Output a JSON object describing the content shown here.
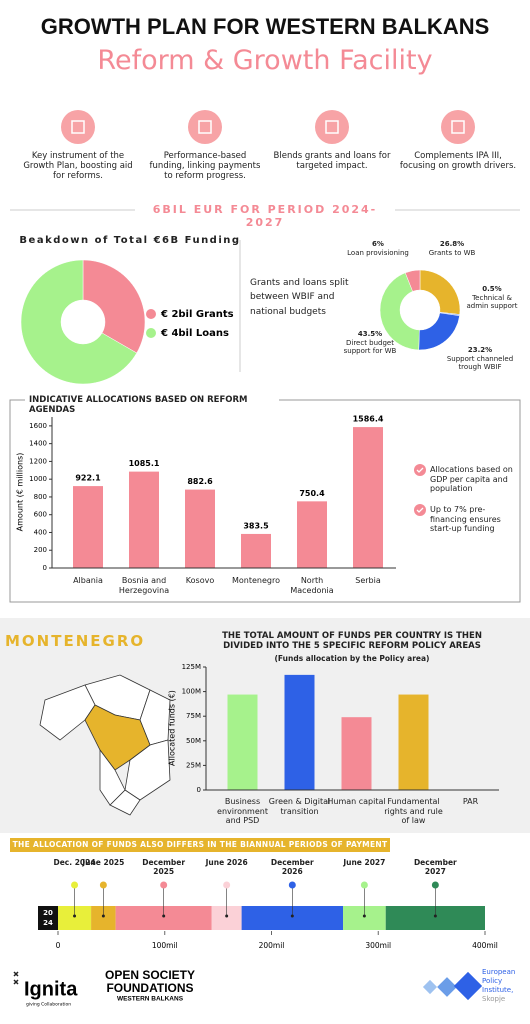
{
  "header": {
    "title": "GROWTH PLAN FOR WESTERN BALKANS",
    "subtitle": "Reform & Growth Facility"
  },
  "features": [
    "Key instrument of the Growth Plan, boosting aid for reforms.",
    "Performance-based funding, linking payments to reform progress.",
    "Blends grants and loans for targeted impact.",
    "Complements IPA III, focusing on growth drivers."
  ],
  "banner": "6BIL EUR FOR PERIOD 2024-2027",
  "chart_data": [
    {
      "type": "pie",
      "title": "Beakdown of Total €6B Funding",
      "categories": [
        "€ 2bil Grants",
        "€ 4bil Loans"
      ],
      "values": [
        2,
        4
      ],
      "colors": [
        "#f48a95",
        "#a6f28c"
      ]
    },
    {
      "type": "pie",
      "annotation": "Grants and loans split between WBIF and national budgets",
      "categories": [
        "Grants to WB",
        "Technical & admin support",
        "Support channeled trough WBIF",
        "Direct budget support for WB",
        "Loan provisioning"
      ],
      "values": [
        26.8,
        0.5,
        23.2,
        43.5,
        6
      ],
      "value_labels": [
        "26.8%",
        "0.5%",
        "23.2%",
        "43.5%",
        "6%"
      ],
      "colors": [
        "#e6b42c",
        "#7aa0f0",
        "#2e61e6",
        "#a6f28c",
        "#f48a95"
      ]
    },
    {
      "type": "bar",
      "title": "INDICATIVE ALLOCATIONS BASED ON REFORM AGENDAS",
      "y_label": "Amount (€ millions)",
      "categories": [
        "Albania",
        "Bosnia and Herzegovina",
        "Kosovo",
        "Montenegro",
        "North Macedonia",
        "Serbia"
      ],
      "values": [
        922.1,
        1085.1,
        882.6,
        383.5,
        750.4,
        1586.4
      ],
      "color": "#f48a95",
      "ylim": [
        0,
        1700
      ],
      "yticks": [
        0,
        200,
        400,
        600,
        800,
        1000,
        1200,
        1400,
        1600
      ],
      "notes": [
        "Allocations based on GDP per capita and population",
        "Up to 7% pre-financing ensures start-up funding"
      ]
    },
    {
      "type": "bar",
      "section": "MONTENEGRO",
      "title": "THE TOTAL AMOUNT OF FUNDS PER COUNTRY IS THEN DIVIDED INTO THE 5 SPECIFIC REFORM POLICY AREAS",
      "subtitle": "(Funds allocation by the Policy area)",
      "y_label": "Allocated funds (€)",
      "categories": [
        "Business environment and PSD",
        "Green & Digital transition",
        "Human capital",
        "Fundamental rights and rule of law",
        "PAR"
      ],
      "values": [
        97000000,
        117000000,
        74000000,
        97000000,
        0
      ],
      "colors": [
        "#a6f28c",
        "#2e61e6",
        "#f48a95",
        "#e6b42c",
        "#f48a95"
      ],
      "ylim": [
        0,
        125000000
      ],
      "yticks": [
        0,
        {
          "value": 25000000,
          "label": "25M"
        },
        {
          "value": 50000000,
          "label": "50M"
        },
        {
          "value": 75000000,
          "label": "75M"
        },
        {
          "value": 100000000,
          "label": "100M"
        },
        {
          "value": 125000000,
          "label": "125M"
        }
      ]
    },
    {
      "type": "timeline",
      "title": "THE ALLOCATION OF FUNDS ALSO DIFFERS IN THE BIANNUAL PERIODS OF PAYMENT",
      "badge": [
        "20",
        "24"
      ],
      "categories": [
        "Dec. 2024",
        "June 2025",
        "December 2025",
        "June 2026",
        "December 2026",
        "June 2027",
        "December 2027"
      ],
      "values": [
        31,
        23,
        90,
        28,
        95,
        40,
        93
      ],
      "colors": [
        "#e8ef3a",
        "#e6b42c",
        "#f48a95",
        "#fbd1d7",
        "#2e61e6",
        "#a6f28c",
        "#2f8a57"
      ],
      "xlim": [
        0,
        400
      ],
      "xticks": [
        0,
        {
          "value": 100,
          "label": "100mil"
        },
        {
          "value": 200,
          "label": "200mil"
        },
        {
          "value": 300,
          "label": "300mil"
        },
        {
          "value": 400,
          "label": "400mil"
        }
      ]
    }
  ],
  "footer": {
    "logo1": "Ignita",
    "tagline": "giving Collaboration",
    "logo2": [
      "OPEN SOCIETY",
      "FOUNDATIONS",
      "WESTERN BALKANS"
    ],
    "logo3": [
      "European",
      "Policy",
      "Institute,",
      "Skopje"
    ]
  }
}
